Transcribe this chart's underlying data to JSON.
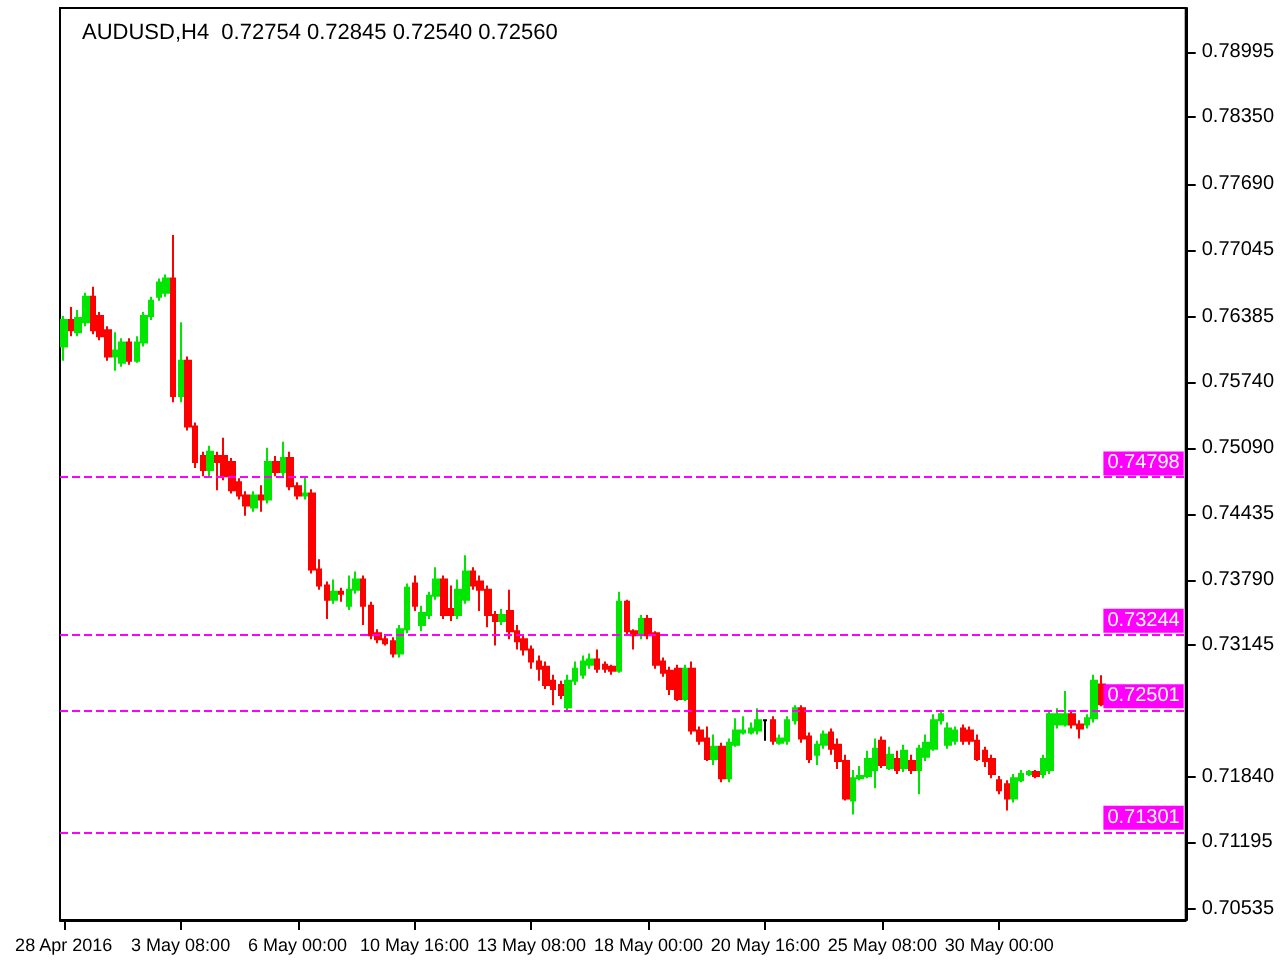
{
  "chart_data": {
    "type": "candlestick",
    "title": "AUDUSD,H4  0.72754 0.72845 0.72540 0.72560",
    "categories": [
      "28 Apr 2016",
      null,
      null,
      null,
      null,
      null,
      null,
      null,
      null,
      null,
      null,
      null,
      null,
      null,
      null,
      null,
      "3 May 08:00",
      null,
      null,
      null,
      null,
      null,
      null,
      null,
      null,
      null,
      null,
      null,
      null,
      null,
      null,
      null,
      "6 May 00:00",
      null,
      null,
      null,
      null,
      null,
      null,
      null,
      null,
      null,
      null,
      null,
      null,
      null,
      null,
      null,
      "10 May 16:00",
      null,
      null,
      null,
      null,
      null,
      null,
      null,
      null,
      null,
      null,
      null,
      null,
      null,
      null,
      null,
      "13 May 08:00",
      null,
      null,
      null,
      null,
      null,
      null,
      null,
      null,
      null,
      null,
      null,
      null,
      null,
      null,
      null,
      "18 May 00:00",
      null,
      null,
      null,
      null,
      null,
      null,
      null,
      null,
      null,
      null,
      null,
      null,
      null,
      null,
      null,
      "20 May 16:00",
      null,
      null,
      null,
      null,
      null,
      null,
      null,
      null,
      null,
      null,
      null,
      null,
      null,
      null,
      null,
      "25 May 08:00",
      null,
      null,
      null,
      null,
      null,
      null,
      null,
      null,
      null,
      null,
      null,
      null,
      null,
      null,
      null,
      "30 May 00:00",
      null,
      null,
      null,
      null,
      null,
      null,
      null,
      null,
      null,
      null,
      null,
      null,
      null,
      null
    ],
    "ohlc": [
      [
        0.7609,
        0.7639,
        0.7595,
        0.7635
      ],
      [
        0.7635,
        0.7648,
        0.7619,
        0.7625
      ],
      [
        0.7623,
        0.7645,
        0.7619,
        0.7637
      ],
      [
        0.7633,
        0.7662,
        0.7629,
        0.7658
      ],
      [
        0.7658,
        0.7668,
        0.7621,
        0.7625
      ],
      [
        0.7639,
        0.7643,
        0.7615,
        0.7619
      ],
      [
        0.7625,
        0.7629,
        0.7595,
        0.7599
      ],
      [
        0.7599,
        0.7623,
        0.7585,
        0.7605
      ],
      [
        0.7593,
        0.7617,
        0.7589,
        0.7613
      ],
      [
        0.7613,
        0.7617,
        0.7591,
        0.7595
      ],
      [
        0.7595,
        0.7619,
        0.7593,
        0.7613
      ],
      [
        0.7613,
        0.7643,
        0.7609,
        0.7639
      ],
      [
        0.7639,
        0.7658,
        0.7635,
        0.7654
      ],
      [
        0.7658,
        0.7676,
        0.7654,
        0.7672
      ],
      [
        0.7662,
        0.768,
        0.7658,
        0.7676
      ],
      [
        0.7676,
        0.7719,
        0.7554,
        0.756
      ],
      [
        0.756,
        0.7633,
        0.7554,
        0.7595
      ],
      [
        0.7595,
        0.7599,
        0.7526,
        0.753
      ],
      [
        0.753,
        0.7534,
        0.7489,
        0.7495
      ],
      [
        0.7501,
        0.7505,
        0.7481,
        0.7487
      ],
      [
        0.7487,
        0.7511,
        0.7481,
        0.7505
      ],
      [
        0.7501,
        0.7505,
        0.7467,
        0.7495
      ],
      [
        0.7501,
        0.7519,
        0.7477,
        0.7481
      ],
      [
        0.7495,
        0.7499,
        0.7464,
        0.7467
      ],
      [
        0.7475,
        0.7479,
        0.7458,
        0.7462
      ],
      [
        0.7462,
        0.7466,
        0.7442,
        0.7452
      ],
      [
        0.745,
        0.7466,
        0.7446,
        0.7462
      ],
      [
        0.7462,
        0.7472,
        0.7446,
        0.7458
      ],
      [
        0.7458,
        0.7509,
        0.7454,
        0.7495
      ],
      [
        0.7495,
        0.7501,
        0.7481,
        0.7485
      ],
      [
        0.7485,
        0.7515,
        0.7481,
        0.7499
      ],
      [
        0.7499,
        0.7505,
        0.7467,
        0.7471
      ],
      [
        0.7471,
        0.7475,
        0.7458,
        0.7462
      ],
      [
        0.7462,
        0.7481,
        0.7458,
        0.7464
      ],
      [
        0.7464,
        0.7468,
        0.7385,
        0.7389
      ],
      [
        0.7389,
        0.7399,
        0.7369,
        0.7373
      ],
      [
        0.7373,
        0.7377,
        0.734,
        0.7359
      ],
      [
        0.7359,
        0.7379,
        0.7355,
        0.7367
      ],
      [
        0.7367,
        0.7371,
        0.7357,
        0.7365
      ],
      [
        0.7353,
        0.7383,
        0.7349,
        0.7369
      ],
      [
        0.7369,
        0.7387,
        0.7365,
        0.7379
      ],
      [
        0.7379,
        0.7383,
        0.7334,
        0.7353
      ],
      [
        0.7353,
        0.7357,
        0.732,
        0.7324
      ],
      [
        0.7326,
        0.733,
        0.7316,
        0.732
      ],
      [
        0.732,
        0.7324,
        0.7314,
        0.7316
      ],
      [
        0.7318,
        0.7322,
        0.7302,
        0.7306
      ],
      [
        0.7306,
        0.7334,
        0.7302,
        0.733
      ],
      [
        0.733,
        0.7375,
        0.7326,
        0.7371
      ],
      [
        0.7375,
        0.7383,
        0.7348,
        0.7353
      ],
      [
        0.7334,
        0.7353,
        0.7328,
        0.7346
      ],
      [
        0.7344,
        0.7367,
        0.734,
        0.7363
      ],
      [
        0.7363,
        0.7391,
        0.7359,
        0.7379
      ],
      [
        0.7379,
        0.7383,
        0.734,
        0.7344
      ],
      [
        0.735,
        0.7373,
        0.7338,
        0.7344
      ],
      [
        0.7344,
        0.7379,
        0.734,
        0.7369
      ],
      [
        0.7359,
        0.7403,
        0.7355,
        0.7387
      ],
      [
        0.7387,
        0.7391,
        0.7369,
        0.7373
      ],
      [
        0.7377,
        0.7383,
        0.7348,
        0.7369
      ],
      [
        0.7369,
        0.7373,
        0.7332,
        0.7344
      ],
      [
        0.7344,
        0.7348,
        0.7314,
        0.7338
      ],
      [
        0.7338,
        0.735,
        0.7334,
        0.7344
      ],
      [
        0.7348,
        0.7369,
        0.732,
        0.7328
      ],
      [
        0.7328,
        0.7334,
        0.731,
        0.7318
      ],
      [
        0.732,
        0.7324,
        0.7304,
        0.731
      ],
      [
        0.731,
        0.7314,
        0.7291,
        0.7298
      ],
      [
        0.7298,
        0.7304,
        0.7279,
        0.7291
      ],
      [
        0.7293,
        0.7298,
        0.7271,
        0.7275
      ],
      [
        0.7279,
        0.7285,
        0.7255,
        0.7271
      ],
      [
        0.7275,
        0.7279,
        0.7261,
        0.7265
      ],
      [
        0.7253,
        0.7285,
        0.7249,
        0.7279
      ],
      [
        0.7279,
        0.7298,
        0.7275,
        0.7291
      ],
      [
        0.7285,
        0.7304,
        0.7281,
        0.7298
      ],
      [
        0.7295,
        0.7306,
        0.7291,
        0.73
      ],
      [
        0.73,
        0.731,
        0.7287,
        0.7291
      ],
      [
        0.7295,
        0.7298,
        0.7287,
        0.7291
      ],
      [
        0.7293,
        0.7295,
        0.7285,
        0.7289
      ],
      [
        0.7289,
        0.7367,
        0.7287,
        0.7357
      ],
      [
        0.7357,
        0.7359,
        0.7324,
        0.7328
      ],
      [
        0.7328,
        0.733,
        0.731,
        0.7324
      ],
      [
        0.7324,
        0.7344,
        0.732,
        0.734
      ],
      [
        0.734,
        0.7344,
        0.732,
        0.7324
      ],
      [
        0.7326,
        0.7328,
        0.7291,
        0.7295
      ],
      [
        0.7298,
        0.7302,
        0.7283,
        0.7287
      ],
      [
        0.7289,
        0.7293,
        0.7265,
        0.7271
      ],
      [
        0.7291,
        0.7295,
        0.7259,
        0.7261
      ],
      [
        0.7261,
        0.7295,
        0.7259,
        0.7291
      ],
      [
        0.7291,
        0.7298,
        0.7226,
        0.723
      ],
      [
        0.723,
        0.7234,
        0.7216,
        0.722
      ],
      [
        0.7222,
        0.7234,
        0.72,
        0.7202
      ],
      [
        0.7202,
        0.7226,
        0.7196,
        0.7214
      ],
      [
        0.7214,
        0.7218,
        0.7179,
        0.7183
      ],
      [
        0.7183,
        0.7222,
        0.7179,
        0.7218
      ],
      [
        0.7216,
        0.7242,
        0.7214,
        0.723
      ],
      [
        0.7228,
        0.7244,
        0.7226,
        0.723
      ],
      [
        0.7228,
        0.7238,
        0.7226,
        0.7232
      ],
      [
        0.723,
        0.7252,
        0.7226,
        0.724
      ],
      [
        0.724,
        0.724,
        0.722,
        0.724
      ],
      [
        0.724,
        0.7244,
        0.7216,
        0.722
      ],
      [
        0.7218,
        0.7226,
        0.7216,
        0.7222
      ],
      [
        0.722,
        0.7244,
        0.7216,
        0.724
      ],
      [
        0.724,
        0.7255,
        0.7236,
        0.7252
      ],
      [
        0.7252,
        0.7255,
        0.7218,
        0.7222
      ],
      [
        0.7224,
        0.7228,
        0.7198,
        0.7202
      ],
      [
        0.7206,
        0.722,
        0.7196,
        0.7216
      ],
      [
        0.7216,
        0.723,
        0.7212,
        0.7226
      ],
      [
        0.7228,
        0.7232,
        0.7206,
        0.7212
      ],
      [
        0.7216,
        0.7222,
        0.7192,
        0.72
      ],
      [
        0.72,
        0.7206,
        0.7161,
        0.7163
      ],
      [
        0.7161,
        0.7191,
        0.7147,
        0.7183
      ],
      [
        0.7183,
        0.7195,
        0.7181,
        0.7185
      ],
      [
        0.7185,
        0.721,
        0.7183,
        0.7202
      ],
      [
        0.7191,
        0.7222,
        0.7173,
        0.7212
      ],
      [
        0.722,
        0.7224,
        0.7193,
        0.7196
      ],
      [
        0.7193,
        0.7214,
        0.7191,
        0.7206
      ],
      [
        0.7202,
        0.721,
        0.7187,
        0.7191
      ],
      [
        0.7193,
        0.7216,
        0.7189,
        0.721
      ],
      [
        0.72,
        0.7206,
        0.7187,
        0.7191
      ],
      [
        0.7191,
        0.7216,
        0.7167,
        0.7212
      ],
      [
        0.7204,
        0.7226,
        0.72,
        0.7218
      ],
      [
        0.7212,
        0.7246,
        0.721,
        0.724
      ],
      [
        0.724,
        0.725,
        0.7236,
        0.7246
      ],
      [
        0.7216,
        0.7238,
        0.7212,
        0.7232
      ],
      [
        0.722,
        0.7234,
        0.7216,
        0.723
      ],
      [
        0.7232,
        0.7236,
        0.7216,
        0.722
      ],
      [
        0.723,
        0.7234,
        0.7216,
        0.722
      ],
      [
        0.722,
        0.7226,
        0.72,
        0.7202
      ],
      [
        0.721,
        0.7214,
        0.7194,
        0.72
      ],
      [
        0.7202,
        0.7206,
        0.7183,
        0.7187
      ],
      [
        0.7181,
        0.7185,
        0.7167,
        0.7171
      ],
      [
        0.7177,
        0.7181,
        0.7151,
        0.7163
      ],
      [
        0.7163,
        0.7187,
        0.7159,
        0.7183
      ],
      [
        0.7181,
        0.7191,
        0.7179,
        0.7187
      ],
      [
        0.7187,
        0.7191,
        0.7185,
        0.7189
      ],
      [
        0.7189,
        0.7191,
        0.7183,
        0.7185
      ],
      [
        0.7187,
        0.7206,
        0.7183,
        0.7202
      ],
      [
        0.7191,
        0.725,
        0.7187,
        0.7246
      ],
      [
        0.7236,
        0.7252,
        0.7232,
        0.7246
      ],
      [
        0.7236,
        0.7269,
        0.7234,
        0.7246
      ],
      [
        0.7246,
        0.725,
        0.7232,
        0.7236
      ],
      [
        0.7236,
        0.724,
        0.7222,
        0.7232
      ],
      [
        0.7236,
        0.7246,
        0.7232,
        0.7242
      ],
      [
        0.7242,
        0.7285,
        0.7238,
        0.7279
      ],
      [
        0.72754,
        0.72845,
        0.7254,
        0.7256
      ]
    ],
    "colors": [
      "#00e600",
      "#ff0000",
      "#00e600",
      "#00e600",
      "#ff0000",
      "#ff0000",
      "#ff0000",
      "#00e600",
      "#00e600",
      "#ff0000",
      "#00e600",
      "#00e600",
      "#00e600",
      "#00e600",
      "#00e600",
      "#ff0000",
      "#00e600",
      "#ff0000",
      "#ff0000",
      "#ff0000",
      "#00e600",
      "#ff0000",
      "#ff0000",
      "#ff0000",
      "#ff0000",
      "#ff0000",
      "#00e600",
      "#ff0000",
      "#00e600",
      "#ff0000",
      "#00e600",
      "#ff0000",
      "#ff0000",
      "#00e600",
      "#ff0000",
      "#ff0000",
      "#ff0000",
      "#00e600",
      "#ff0000",
      "#00e600",
      "#00e600",
      "#ff0000",
      "#ff0000",
      "#ff0000",
      "#ff0000",
      "#ff0000",
      "#00e600",
      "#00e600",
      "#ff0000",
      "#00e600",
      "#00e600",
      "#00e600",
      "#ff0000",
      "#ff0000",
      "#00e600",
      "#00e600",
      "#ff0000",
      "#ff0000",
      "#ff0000",
      "#ff0000",
      "#00e600",
      "#ff0000",
      "#ff0000",
      "#ff0000",
      "#ff0000",
      "#ff0000",
      "#ff0000",
      "#ff0000",
      "#ff0000",
      "#00e600",
      "#00e600",
      "#00e600",
      "#00e600",
      "#ff0000",
      "#ff0000",
      "#ff0000",
      "#00e600",
      "#ff0000",
      "#ff0000",
      "#00e600",
      "#ff0000",
      "#ff0000",
      "#ff0000",
      "#ff0000",
      "#ff0000",
      "#00e600",
      "#ff0000",
      "#ff0000",
      "#ff0000",
      "#00e600",
      "#ff0000",
      "#00e600",
      "#00e600",
      "#00e600",
      "#00e600",
      "#00e600",
      "#000000",
      "#ff0000",
      "#00e600",
      "#00e600",
      "#00e600",
      "#ff0000",
      "#ff0000",
      "#00e600",
      "#00e600",
      "#ff0000",
      "#ff0000",
      "#ff0000",
      "#00e600",
      "#00e600",
      "#00e600",
      "#00e600",
      "#ff0000",
      "#00e600",
      "#ff0000",
      "#00e600",
      "#ff0000",
      "#00e600",
      "#00e600",
      "#00e600",
      "#00e600",
      "#00e600",
      "#00e600",
      "#ff0000",
      "#ff0000",
      "#ff0000",
      "#ff0000",
      "#ff0000",
      "#ff0000",
      "#ff0000",
      "#00e600",
      "#00e600",
      "#00e600",
      "#ff0000",
      "#00e600",
      "#00e600",
      "#00e600",
      "#00e600",
      "#ff0000",
      "#ff0000",
      "#00e600",
      "#00e600",
      "#ff0000"
    ],
    "ylim": [
      0.7043,
      0.7943
    ],
    "yticks": [
      0.78995,
      {
        "value": 0.7835,
        "label": "0.78350"
      },
      {
        "value": 0.7769,
        "label": "0.77690"
      },
      0.77045,
      0.76385,
      {
        "value": 0.7574,
        "label": "0.75740"
      },
      {
        "value": 0.7509,
        "label": "0.75090"
      },
      0.74435,
      {
        "value": 0.7379,
        "label": "0.73790"
      },
      0.73145,
      {
        "value": 0.7184,
        "label": "0.71840"
      },
      0.71195,
      0.70535
    ],
    "ref_lines": [
      {
        "axis": "y",
        "value": 0.74798,
        "label": "0.74798",
        "color": "#ff00ff",
        "line_style": "dashed"
      },
      {
        "axis": "y",
        "value": 0.73244,
        "label": "0.73244",
        "color": "#ff00ff",
        "line_style": "dashed"
      },
      {
        "axis": "y",
        "value": 0.72501,
        "label": "0.72501",
        "color": "#ff00ff",
        "line_style": "dashed"
      },
      {
        "axis": "y",
        "value": 0.71301,
        "label": "0.71301",
        "color": "#ff00ff",
        "line_style": "dashed"
      }
    ],
    "grid": false
  }
}
